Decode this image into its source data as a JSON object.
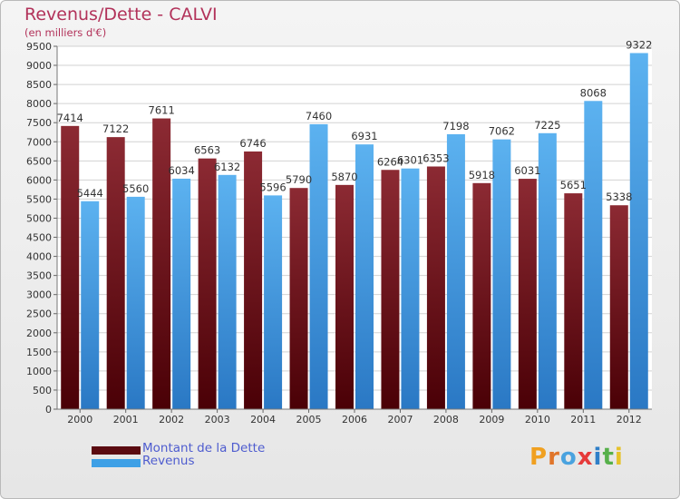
{
  "header": {
    "title": "Revenus/Dette - CALVI",
    "subtitle": "(en milliers d'€)"
  },
  "colors": {
    "dette": "#7a1a22",
    "revenus": "#3ea0e6",
    "title": "#b2325a",
    "legend_text": "#4e5ccf"
  },
  "legend": [
    {
      "label": "Montant de la Dette",
      "color": "#6a0f16"
    },
    {
      "label": "Revenus",
      "color": "#3ea0e6"
    }
  ],
  "logo": {
    "letters": [
      "P",
      "r",
      "o",
      "x",
      "i",
      "t",
      "i"
    ],
    "colors": [
      "#f0a020",
      "#e0752a",
      "#4aa3df",
      "#e63a3a",
      "#2f7fc8",
      "#56b04a",
      "#e6c22a"
    ]
  },
  "chart_data": {
    "type": "bar",
    "categories": [
      "2000",
      "2001",
      "2002",
      "2003",
      "2004",
      "2005",
      "2006",
      "2007",
      "2008",
      "2009",
      "2010",
      "2011",
      "2012"
    ],
    "series": [
      {
        "name": "Montant de la Dette",
        "values": [
          7414,
          7122,
          7611,
          6563,
          6746,
          5790,
          5870,
          6264,
          6353,
          5918,
          6031,
          5651,
          5338
        ],
        "labels": [
          "7414",
          "7122",
          "7611",
          "6563",
          "6746",
          "5790",
          "5870",
          "6264",
          "6353",
          "5918",
          "6031",
          "5651",
          "5338"
        ]
      },
      {
        "name": "Revenus",
        "values": [
          5444,
          5560,
          6034,
          6132,
          5596,
          7460,
          6931,
          6301,
          7198,
          7062,
          7225,
          8068,
          9322
        ],
        "labels": [
          "5444",
          "5560",
          "6034",
          "6132",
          "5596",
          "7460",
          "6931",
          "6301",
          "7198",
          "7062",
          "7225",
          "8068",
          "9322"
        ]
      }
    ],
    "ylim": [
      0,
      9500
    ],
    "yticks": [
      "0",
      "500",
      "1000",
      "1500",
      "2000",
      "2500",
      "3000",
      "3500",
      "4000",
      "4500",
      "5000",
      "5500",
      "6000",
      "6500",
      "7000",
      "7500",
      "8000",
      "8500",
      "9000",
      "9500"
    ],
    "grid": true,
    "legend_position": "bottom-left"
  }
}
